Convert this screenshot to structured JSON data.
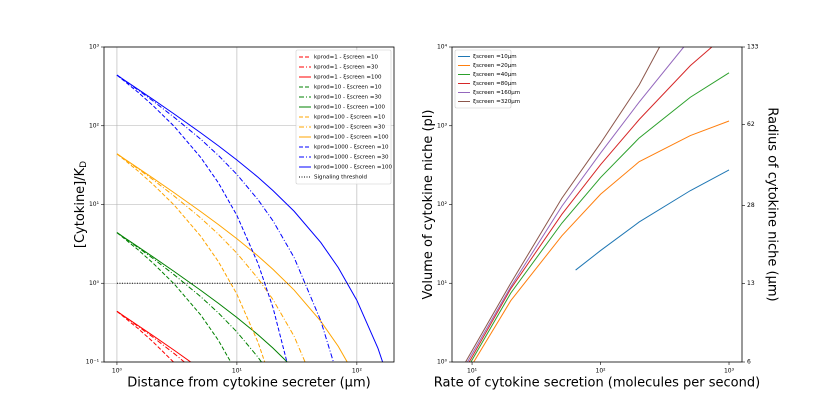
{
  "chart_data": [
    {
      "type": "line",
      "log_x": true,
      "log_y": true,
      "grid": true,
      "legend": "upper right",
      "xlabel": "Distance from cytokine secreter (μm)",
      "ylabel": "[Cytokine]/K",
      "ylabel_sub": "D",
      "xlim": [
        0.78,
        204
      ],
      "ylim": [
        0.1,
        1000
      ],
      "xticks": [
        {
          "value": 1,
          "label": "10⁰"
        },
        {
          "value": 10,
          "label": "10¹"
        },
        {
          "value": 100,
          "label": "10²"
        }
      ],
      "yticks": [
        {
          "value": 0.1,
          "label": "10⁻¹"
        },
        {
          "value": 1,
          "label": "10⁰"
        },
        {
          "value": 10,
          "label": "10¹"
        },
        {
          "value": 100,
          "label": "10²"
        },
        {
          "value": 1000,
          "label": "10³"
        }
      ],
      "x": [
        1,
        1.5,
        2,
        3,
        5,
        7,
        10,
        15,
        20,
        30,
        50,
        70,
        100,
        150,
        200
      ],
      "series": [
        {
          "name": "kprod=1 - ξscreen =10",
          "color": "red",
          "linestyle": "dashed",
          "values": [
            0.44,
            0.266,
            0.18,
            0.098,
            null,
            null,
            null,
            null,
            null,
            null,
            null,
            null,
            null,
            null,
            null
          ]
        },
        {
          "name": "kprod=1 - ξscreen =30",
          "color": "red",
          "linestyle": "dashdot",
          "values": [
            0.44,
            0.284,
            0.206,
            0.128,
            0.067,
            null,
            null,
            null,
            null,
            null,
            null,
            null,
            null,
            null,
            null
          ]
        },
        {
          "name": "kprod=1 - ξscreen =100",
          "color": "red",
          "linestyle": "solid",
          "values": [
            0.44,
            0.29,
            0.216,
            0.141,
            0.081,
            null,
            null,
            null,
            null,
            null,
            null,
            null,
            null,
            null,
            null
          ]
        },
        {
          "name": "kprod=10 - ξscreen =10",
          "color": "green",
          "linestyle": "dashed",
          "values": [
            4.4,
            2.66,
            1.8,
            0.98,
            0.395,
            0.189,
            0.073,
            null,
            null,
            null,
            null,
            null,
            null,
            null,
            null
          ]
        },
        {
          "name": "kprod=10 - ξscreen =30",
          "color": "green",
          "linestyle": "dashdot",
          "values": [
            4.4,
            2.84,
            2.06,
            1.28,
            0.674,
            0.421,
            0.241,
            0.115,
            0.062,
            null,
            null,
            null,
            null,
            null,
            null
          ]
        },
        {
          "name": "kprod=10 - ξscreen =100",
          "color": "green",
          "linestyle": "solid",
          "values": [
            4.4,
            2.9,
            2.16,
            1.41,
            0.812,
            0.557,
            0.367,
            0.222,
            0.15,
            0.082,
            null,
            null,
            null,
            null,
            null
          ]
        },
        {
          "name": "kprod=100 - ξscreen =10",
          "color": "orange",
          "linestyle": "dashed",
          "values": [
            44,
            26.6,
            18,
            9.83,
            3.95,
            1.89,
            0.726,
            0.178,
            0.049,
            null,
            null,
            null,
            null,
            null,
            null
          ]
        },
        {
          "name": "kprod=100 - ξscreen =30",
          "color": "orange",
          "linestyle": "dashdot",
          "values": [
            44,
            28.4,
            20.6,
            12.8,
            6.74,
            4.21,
            2.41,
            1.15,
            0.62,
            0.212,
            0.034,
            null,
            null,
            null,
            null
          ]
        },
        {
          "name": "kprod=100 - ξscreen =100",
          "color": "orange",
          "linestyle": "solid",
          "values": [
            44,
            29,
            21.6,
            14.1,
            8.12,
            5.57,
            3.67,
            2.22,
            1.5,
            0.82,
            0.33,
            0.158,
            0.061,
            null,
            null
          ]
        },
        {
          "name": "kprod=1000 - ξscreen =10",
          "color": "blue",
          "linestyle": "dashed",
          "values": [
            440,
            266,
            180,
            98.3,
            39.5,
            18.9,
            7.26,
            1.78,
            0.49,
            0.044,
            null,
            null,
            null,
            null,
            null
          ]
        },
        {
          "name": "kprod=1000 - ξscreen =30",
          "color": "blue",
          "linestyle": "dashdot",
          "values": [
            440,
            284,
            206,
            128,
            67.4,
            42.1,
            24.1,
            11.5,
            6.2,
            2.12,
            0.335,
            0.063,
            null,
            null,
            null
          ]
        },
        {
          "name": "kprod=1000 - ξscreen =100",
          "color": "blue",
          "linestyle": "solid",
          "values": [
            440,
            290,
            216,
            141,
            81.2,
            55.7,
            36.7,
            22.2,
            15,
            8.21,
            3.3,
            1.58,
            0.607,
            0.149,
            0.041
          ]
        },
        {
          "name": "Signaling threshold",
          "color": "black",
          "linestyle": "dotted",
          "values": [
            1,
            1,
            1,
            1,
            1,
            1,
            1,
            1,
            1,
            1,
            1,
            1,
            1,
            1,
            1
          ]
        }
      ]
    },
    {
      "type": "line",
      "log_x": true,
      "log_y": true,
      "log_y2": true,
      "grid": false,
      "legend": "upper left",
      "xlabel": "Rate of cytokine secretion (molecules per second)",
      "ylabel": "Volume of cytokine niche (pl)",
      "y2label": "Radius of cytokine niche (μm)",
      "xlim": [
        6.98,
        1262
      ],
      "ylim": [
        1,
        10000
      ],
      "y2lim": [
        6,
        133
      ],
      "xticks": [
        {
          "value": 10,
          "label": "10¹"
        },
        {
          "value": 100,
          "label": "10²"
        },
        {
          "value": 1000,
          "label": "10³"
        }
      ],
      "yticks": [
        {
          "value": 1,
          "label": "10⁰"
        },
        {
          "value": 10,
          "label": "10¹"
        },
        {
          "value": 100,
          "label": "10²"
        },
        {
          "value": 1000,
          "label": "10³"
        },
        {
          "value": 10000,
          "label": "10⁴"
        }
      ],
      "y2ticks": [
        6,
        13,
        28,
        62,
        133
      ],
      "series": [
        {
          "name": "ξscreen =10μm",
          "color": "#1f77b4",
          "x": [
            64,
            100,
            200,
            500,
            1000
          ],
          "values": [
            14.7,
            26,
            60,
            150,
            275
          ]
        },
        {
          "name": "ξscreen =20μm",
          "color": "#ff7f0e",
          "x": [
            10.3,
            20,
            50,
            100,
            200,
            500,
            1000
          ],
          "values": [
            1,
            6,
            40,
            135,
            350,
            750,
            1150
          ]
        },
        {
          "name": "ξscreen =40μm",
          "color": "#2ca02c",
          "x": [
            9.8,
            20,
            50,
            100,
            200,
            500,
            1000
          ],
          "values": [
            1,
            7.5,
            58,
            220,
            700,
            2300,
            4700
          ]
        },
        {
          "name": "ξscreen =80μm",
          "color": "#d62728",
          "x": [
            9.5,
            20,
            50,
            100,
            200,
            500,
            735
          ],
          "values": [
            1,
            8.5,
            75,
            320,
            1200,
            5800,
            10000
          ]
        },
        {
          "name": "ξscreen =160μm",
          "color": "#9467bd",
          "x": [
            9.2,
            20,
            50,
            100,
            200,
            444,
            500
          ],
          "values": [
            1,
            9,
            95,
            450,
            2000,
            10000,
            12500
          ]
        },
        {
          "name": "ξscreen =320μm",
          "color": "#8c564b",
          "x": [
            8.9,
            20,
            50,
            100,
            200,
            288,
            300
          ],
          "values": [
            1,
            10,
            120,
            600,
            3300,
            10000,
            11000
          ]
        }
      ]
    }
  ]
}
